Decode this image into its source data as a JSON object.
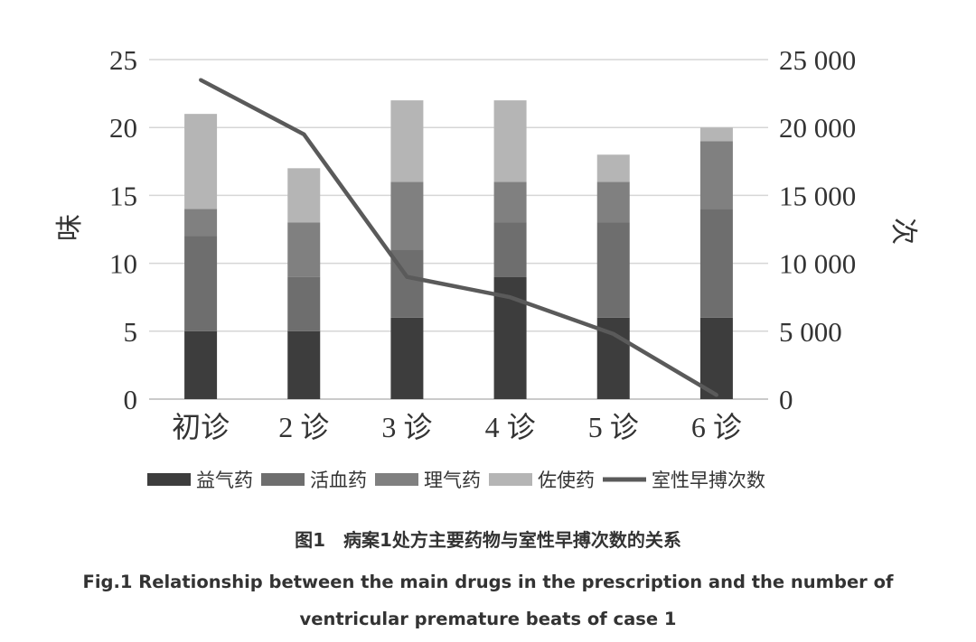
{
  "chart_data": {
    "type": "bar",
    "stacked": true,
    "categories": [
      "初诊",
      "2 诊",
      "3 诊",
      "4 诊",
      "5 诊",
      "6 诊"
    ],
    "series": [
      {
        "name": "益气药",
        "type": "bar",
        "axis": "left",
        "color": "#3d3d3d",
        "values": [
          5,
          5,
          6,
          9,
          6,
          6
        ]
      },
      {
        "name": "活血药",
        "type": "bar",
        "axis": "left",
        "color": "#6e6e6e",
        "values": [
          7,
          4,
          5,
          4,
          7,
          8
        ]
      },
      {
        "name": "理气药",
        "type": "bar",
        "axis": "left",
        "color": "#808080",
        "values": [
          2,
          4,
          5,
          3,
          3,
          5
        ]
      },
      {
        "name": "佐使药",
        "type": "bar",
        "axis": "left",
        "color": "#b5b5b5",
        "values": [
          7,
          4,
          6,
          6,
          2,
          1
        ]
      },
      {
        "name": "室性早搏次数",
        "type": "line",
        "axis": "right",
        "color": "#5a5a5a",
        "values": [
          23500,
          19500,
          9000,
          7500,
          4800,
          300
        ]
      }
    ],
    "ylabel": "味",
    "ylim": [
      0,
      25
    ],
    "yticks": [
      "0",
      "5",
      "10",
      "15",
      "20",
      "25"
    ],
    "y2label": "次",
    "y2lim": [
      0,
      25000
    ],
    "y2ticks": [
      "0",
      "5 000",
      "10 000",
      "15 000",
      "20 000",
      "25 000"
    ],
    "grid": true,
    "legend_position": "bottom"
  },
  "caption": {
    "cn": "图1　病案1处方主要药物与室性早搏次数的关系",
    "en": "Fig.1  Relationship between the main drugs in the prescription and the number of ventricular premature beats of case 1"
  }
}
